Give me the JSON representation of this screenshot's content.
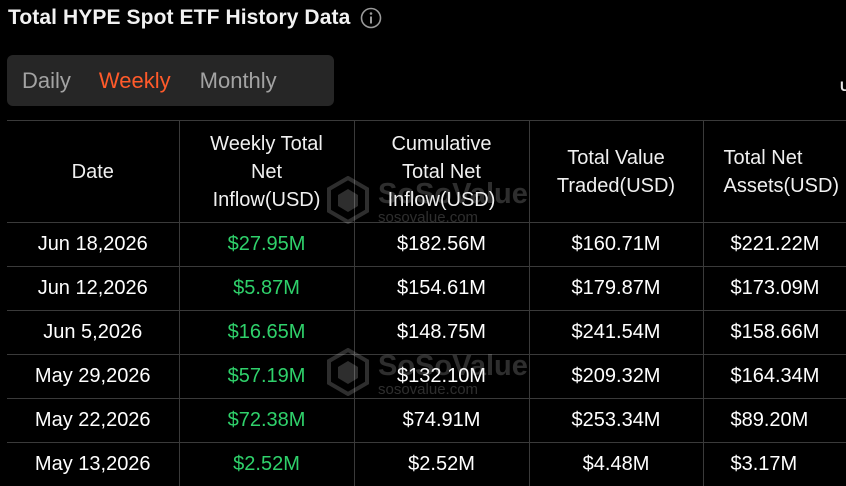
{
  "page": {
    "title": "Total HYPE Spot ETF History Data",
    "info_icon": "info-circle-icon",
    "corner_text": "U"
  },
  "tabs": [
    {
      "label": "Daily",
      "active": false
    },
    {
      "label": "Weekly",
      "active": true
    },
    {
      "label": "Monthly",
      "active": false
    }
  ],
  "colors": {
    "background": "#000000",
    "accent": "#ff5a2a",
    "positive": "#2fd16b",
    "tab_bg": "#262626",
    "border": "#3a3a3a"
  },
  "table": {
    "headers": [
      "Date",
      "Weekly Total Net Inflow(USD)",
      "Cumulative Total Net Inflow(USD)",
      "Total Value Traded(USD)",
      "Total Net Assets(USD)"
    ],
    "rows": [
      [
        "Jun 18,2026",
        "$27.95M",
        "$182.56M",
        "$160.71M",
        "$221.22M"
      ],
      [
        "Jun 12,2026",
        "$5.87M",
        "$154.61M",
        "$179.87M",
        "$173.09M"
      ],
      [
        "Jun 5,2026",
        "$16.65M",
        "$148.75M",
        "$241.54M",
        "$158.66M"
      ],
      [
        "May 29,2026",
        "$57.19M",
        "$132.10M",
        "$209.32M",
        "$164.34M"
      ],
      [
        "May 22,2026",
        "$72.38M",
        "$74.91M",
        "$253.34M",
        "$89.20M"
      ],
      [
        "May 13,2026",
        "$2.52M",
        "$2.52M",
        "$4.48M",
        "$3.17M"
      ]
    ]
  },
  "watermark": {
    "brand": "SoSoValue",
    "url": "sosovalue.com",
    "icon": "sosovalue-logo-icon"
  }
}
